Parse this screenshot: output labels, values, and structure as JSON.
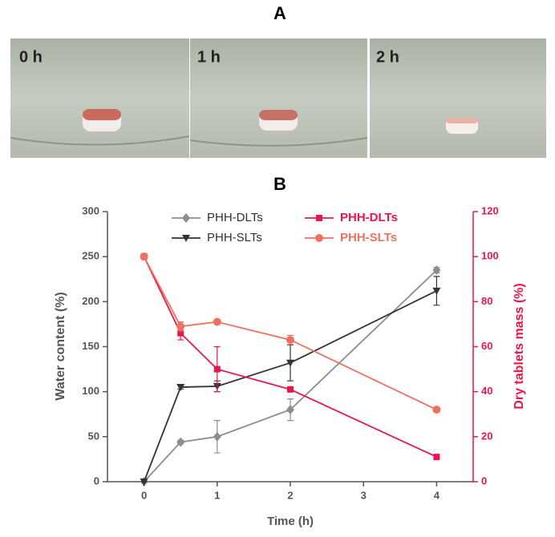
{
  "panels": {
    "a": {
      "label": "A",
      "photos": [
        "0 h",
        "1 h",
        "2 h"
      ]
    },
    "b": {
      "label": "B"
    }
  },
  "chart_data": {
    "type": "line",
    "x_label": "Time (h)",
    "y_label": "Water content (%)",
    "y2_label": "Dry tablets mass (%)",
    "x": [
      0,
      0.5,
      1,
      2,
      4
    ],
    "xlim": [
      -0.5,
      4.5
    ],
    "xticks": [
      0,
      1,
      2,
      3,
      4
    ],
    "ylim": [
      0,
      300
    ],
    "yticks": [
      0,
      50,
      100,
      150,
      200,
      250,
      300
    ],
    "y2lim": [
      0,
      120
    ],
    "y2ticks": [
      0,
      20,
      40,
      60,
      80,
      100,
      120
    ],
    "series": [
      {
        "name": "PHH-DLTs",
        "color": "#8c8c8c",
        "marker": "diamond",
        "values": [
          0,
          44,
          50,
          80,
          235
        ],
        "errors": [
          0,
          2,
          18,
          12,
          3
        ]
      },
      {
        "name": "PHH-SLTs",
        "color": "#333333",
        "marker": "triangle-down",
        "values": [
          0,
          105,
          106,
          132,
          212
        ],
        "errors": [
          0,
          2,
          6,
          20,
          16
        ]
      },
      {
        "name": "PHH-DLTs",
        "color": "#e8174a",
        "marker": "square",
        "axis": "y2",
        "values": [
          100,
          66,
          50,
          41,
          11
        ],
        "errors": [
          0,
          3,
          10,
          1,
          1
        ]
      },
      {
        "name": "PHH-SLTs",
        "color": "#f07060",
        "marker": "circle",
        "axis": "y2",
        "values": [
          100,
          69,
          71,
          63,
          32
        ],
        "errors": [
          0,
          2,
          1,
          2,
          1
        ]
      }
    ]
  }
}
